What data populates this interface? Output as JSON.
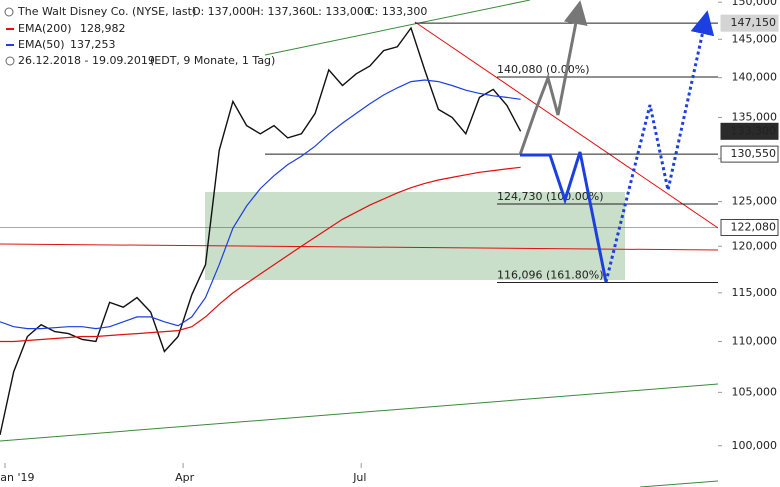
{
  "chart_data": {
    "type": "line",
    "title": "The Walt Disney Co. (NYSE, last)",
    "ohlc": [
      "O: 137,000",
      "H: 137,360",
      "L: 133,000",
      "C: 133,300"
    ],
    "subtitle": "26.12.2018 - 19.09.2019",
    "note": "(EDT, 9 Monate, 1 Tag)",
    "log_scale": true,
    "ylim": [
      96.3,
      150.3
    ],
    "yticks": [
      {
        "value": 100,
        "label": "100,000"
      },
      {
        "value": 105,
        "label": "105,000"
      },
      {
        "value": 110,
        "label": "110,000"
      },
      {
        "value": 115,
        "label": "115,000"
      },
      {
        "value": 120,
        "label": "120,000"
      },
      {
        "value": 125,
        "label": "125,000"
      },
      {
        "value": 130,
        "label": "130,000"
      },
      {
        "value": 135,
        "label": "135,000"
      },
      {
        "value": 140,
        "label": "140,000"
      },
      {
        "value": 145,
        "label": "145,000"
      },
      {
        "value": 150,
        "label": "150,000"
      }
    ],
    "categories": [
      "Jan '19",
      null,
      null,
      null,
      null,
      null,
      null,
      null,
      null,
      null,
      null,
      null,
      null,
      "Apr",
      null,
      null,
      null,
      null,
      null,
      null,
      null,
      null,
      null,
      null,
      null,
      null,
      "Jul",
      null,
      null,
      null,
      null,
      null,
      null,
      null,
      null,
      null,
      null,
      null,
      null
    ],
    "series": [
      {
        "color": "#111111",
        "values": [
          101,
          107,
          110.5,
          111.7,
          111,
          110.8,
          110.2,
          110,
          114,
          113.5,
          114.5,
          113,
          109,
          110.5,
          114.8,
          118,
          131,
          137,
          134,
          133,
          134,
          132.5,
          133,
          135.5,
          141,
          139,
          140.5,
          141.5,
          143.5,
          144,
          146.5,
          141,
          136,
          135,
          133,
          137.5,
          138.5,
          136.5,
          133.3
        ]
      },
      {
        "name": "EMA(200)",
        "legend_value": "128,982",
        "color": "#e01010",
        "values": [
          110,
          110,
          110.1,
          110.2,
          110.3,
          110.4,
          110.5,
          110.5,
          110.6,
          110.7,
          110.8,
          110.9,
          111,
          111.1,
          111.5,
          112.5,
          113.8,
          115,
          116,
          117,
          118,
          119,
          120,
          121,
          122,
          123,
          123.8,
          124.6,
          125.3,
          126,
          126.6,
          127.1,
          127.5,
          127.8,
          128.1,
          128.4,
          128.6,
          128.8,
          128.982
        ]
      },
      {
        "name": "EMA(50)",
        "legend_value": "137,253",
        "color": "#1c3fe0",
        "values": [
          112,
          111.5,
          111.3,
          111.3,
          111.4,
          111.5,
          111.5,
          111.3,
          111.5,
          112,
          112.5,
          112.5,
          112,
          111.6,
          112.5,
          114.5,
          118,
          122,
          124.5,
          126.5,
          128,
          129.3,
          130.3,
          131.5,
          133,
          134.3,
          135.5,
          136.7,
          137.8,
          138.7,
          139.5,
          139.7,
          139.5,
          139,
          138.4,
          138,
          137.7,
          137.5,
          137.253
        ]
      }
    ],
    "price_markers": [
      {
        "value": 147.15,
        "label": "147,150"
      },
      {
        "value": 133.3,
        "label": "133,300"
      },
      {
        "value": 130.55,
        "label": "130,550"
      },
      {
        "value": 122.08,
        "label": "122,080"
      }
    ],
    "levels": [
      {
        "value": 140.08,
        "label": "140,080 (0.00%)"
      },
      {
        "value": 124.73,
        "label": "124,730 (100.00%)"
      },
      {
        "value": 116.096,
        "label": "116,096 (161.80%)"
      }
    ]
  }
}
